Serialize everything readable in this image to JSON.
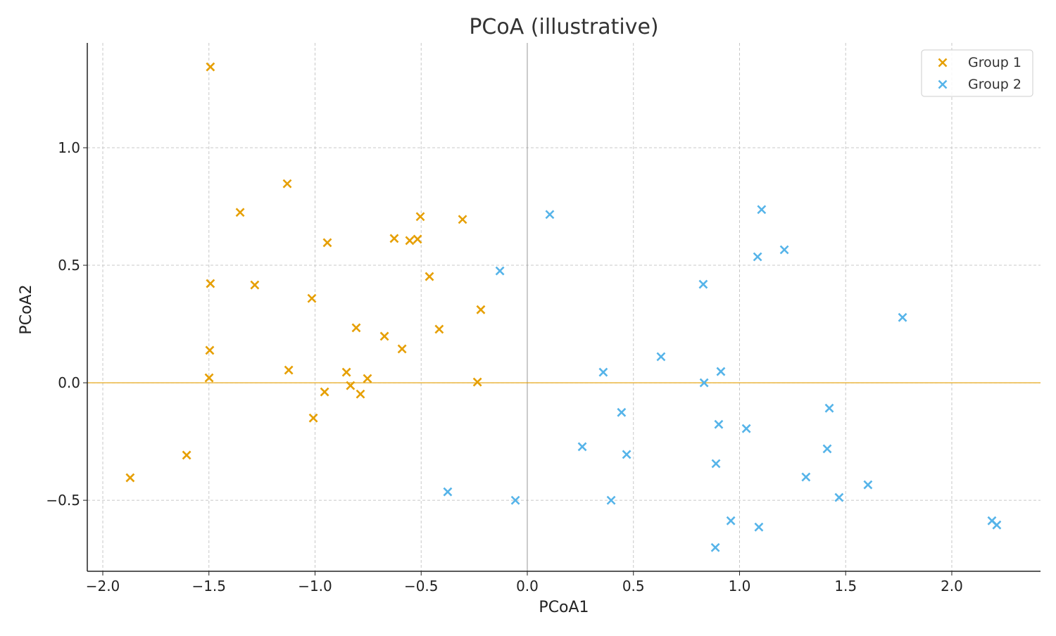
{
  "chart_data": {
    "type": "scatter",
    "title": "PCoA (illustrative)",
    "xlabel": "PCoA1",
    "ylabel": "PCoA2",
    "xlim": [
      -2.073,
      2.418
    ],
    "ylim": [
      -0.802,
      1.446
    ],
    "xticks": [
      -2.0,
      -1.5,
      -1.0,
      -0.5,
      0.0,
      0.5,
      1.0,
      1.5,
      2.0
    ],
    "xtick_labels": [
      "−2.0",
      "−1.5",
      "−1.0",
      "−0.5",
      "0.0",
      "0.5",
      "1.0",
      "1.5",
      "2.0"
    ],
    "yticks": [
      -0.5,
      0.0,
      0.5,
      1.0
    ],
    "ytick_labels": [
      "−0.5",
      "0.0",
      "0.5",
      "1.0"
    ],
    "grid": true,
    "legend_position": "top-right",
    "reference_lines": {
      "x0_color": "#999999",
      "y0_color": "#E69F00"
    },
    "series": [
      {
        "name": "Group 1",
        "color": "#E69F00",
        "marker": "x",
        "points": [
          [
            -1.493,
            1.344
          ],
          [
            -1.131,
            0.847
          ],
          [
            -1.353,
            0.725
          ],
          [
            -0.942,
            0.596
          ],
          [
            -0.627,
            0.614
          ],
          [
            -0.554,
            0.605
          ],
          [
            -0.517,
            0.611
          ],
          [
            -0.504,
            0.707
          ],
          [
            -0.305,
            0.695
          ],
          [
            -1.493,
            0.422
          ],
          [
            -1.284,
            0.416
          ],
          [
            -1.015,
            0.359
          ],
          [
            -0.461,
            0.452
          ],
          [
            -0.219,
            0.311
          ],
          [
            -0.806,
            0.234
          ],
          [
            -0.673,
            0.198
          ],
          [
            -0.59,
            0.144
          ],
          [
            -0.415,
            0.228
          ],
          [
            -1.496,
            0.138
          ],
          [
            -1.124,
            0.054
          ],
          [
            -1.499,
            0.021
          ],
          [
            -0.852,
            0.045
          ],
          [
            -0.833,
            -0.012
          ],
          [
            -0.753,
            0.018
          ],
          [
            -0.786,
            -0.048
          ],
          [
            -0.955,
            -0.039
          ],
          [
            -0.235,
            0.003
          ],
          [
            -1.008,
            -0.15
          ],
          [
            -1.605,
            -0.308
          ],
          [
            -1.871,
            -0.404
          ]
        ]
      },
      {
        "name": "Group 2",
        "color": "#56B4E9",
        "marker": "x",
        "points": [
          [
            0.106,
            0.716
          ],
          [
            -0.129,
            0.476
          ],
          [
            1.104,
            0.737
          ],
          [
            1.085,
            0.536
          ],
          [
            1.211,
            0.566
          ],
          [
            0.829,
            0.419
          ],
          [
            1.768,
            0.278
          ],
          [
            0.63,
            0.111
          ],
          [
            0.358,
            0.045
          ],
          [
            0.912,
            0.048
          ],
          [
            0.833,
            0.0
          ],
          [
            0.444,
            -0.126
          ],
          [
            1.423,
            -0.108
          ],
          [
            0.902,
            -0.177
          ],
          [
            1.032,
            -0.195
          ],
          [
            0.259,
            -0.272
          ],
          [
            0.468,
            -0.305
          ],
          [
            1.413,
            -0.281
          ],
          [
            0.889,
            -0.344
          ],
          [
            1.313,
            -0.401
          ],
          [
            1.605,
            -0.434
          ],
          [
            -0.375,
            -0.464
          ],
          [
            -0.056,
            -0.5
          ],
          [
            0.395,
            -0.5
          ],
          [
            1.469,
            -0.488
          ],
          [
            0.959,
            -0.587
          ],
          [
            1.091,
            -0.614
          ],
          [
            0.886,
            -0.701
          ],
          [
            2.189,
            -0.587
          ],
          [
            2.212,
            -0.605
          ]
        ]
      }
    ]
  }
}
